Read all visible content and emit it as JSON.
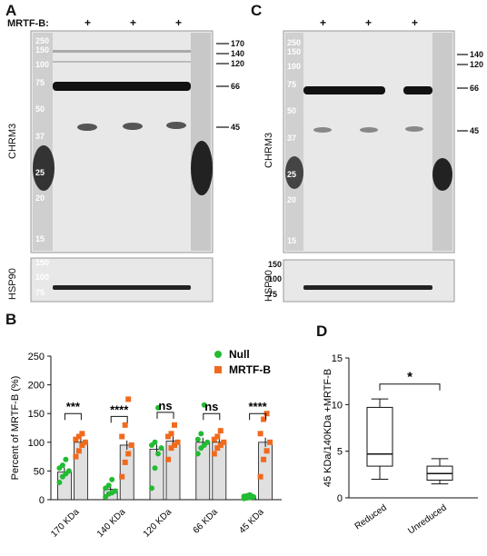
{
  "panels": {
    "a": "A",
    "b": "B",
    "c": "C",
    "d": "D"
  },
  "blot_a": {
    "mrtf_label": "MRTF-B:",
    "plus_marks": [
      "+",
      "+",
      "+"
    ],
    "mw_ladder": [
      "250",
      "150",
      "100",
      "75",
      "50",
      "37",
      "25",
      "20",
      "15"
    ],
    "right_markers": [
      "170",
      "140",
      "120",
      "66",
      "45"
    ],
    "antibody": "CHRM3",
    "loading_control": "HSP90",
    "hsp_ladder": [
      "150",
      "100",
      "75"
    ]
  },
  "blot_c": {
    "plus_marks": [
      "+",
      "+",
      "+"
    ],
    "mw_ladder": [
      "250",
      "150",
      "100",
      "75",
      "50",
      "37",
      "25",
      "20",
      "15"
    ],
    "right_markers": [
      "140",
      "120",
      "66",
      "45"
    ],
    "antibody": "CHRM3",
    "loading_control": "HSP90",
    "hsp_ladder": [
      "150",
      "100",
      "75"
    ]
  },
  "chart_data": [
    {
      "type": "bar",
      "ylabel": "Percent of MRTF-B (%)",
      "ylim": [
        0,
        250
      ],
      "yticks": [
        "0",
        "50",
        "100",
        "150",
        "200",
        "250"
      ],
      "categories": [
        "170 KDa",
        "140 KDa",
        "120 KDa",
        "66 KDa",
        "45 KDa"
      ],
      "series": [
        {
          "name": "Null",
          "color": "#22bb33",
          "values": [
            48,
            18,
            88,
            100,
            5
          ],
          "points": [
            [
              30,
              40,
              45,
              50,
              55,
              60,
              70
            ],
            [
              5,
              10,
              12,
              15,
              20,
              25,
              35
            ],
            [
              20,
              55,
              80,
              90,
              95,
              100,
              160
            ],
            [
              80,
              90,
              95,
              100,
              105,
              115,
              165
            ],
            [
              2,
              3,
              4,
              5,
              6,
              7,
              8
            ]
          ]
        },
        {
          "name": "MRTF-B",
          "color": "#f06a1e",
          "values": [
            100,
            95,
            102,
            100,
            100
          ],
          "points": [
            [
              75,
              85,
              95,
              100,
              105,
              110,
              115
            ],
            [
              40,
              65,
              80,
              95,
              110,
              130,
              175
            ],
            [
              70,
              90,
              95,
              100,
              110,
              115,
              130
            ],
            [
              80,
              90,
              95,
              100,
              105,
              110,
              120
            ],
            [
              40,
              70,
              85,
              100,
              115,
              140,
              150
            ]
          ]
        }
      ],
      "significance": [
        "***",
        "****",
        "ns",
        "ns",
        "****"
      ],
      "legend": "top-right"
    },
    {
      "type": "box",
      "ylabel": "45 KDa/140KDa +MRTF-B",
      "ylim": [
        0,
        15
      ],
      "yticks": [
        "0",
        "5",
        "10",
        "15"
      ],
      "categories": [
        "Reduced",
        "Unreduced"
      ],
      "boxes": [
        {
          "min": 2.0,
          "q1": 3.4,
          "median": 4.7,
          "q3": 9.7,
          "max": 10.6
        },
        {
          "min": 1.5,
          "q1": 1.9,
          "median": 2.6,
          "q3": 3.4,
          "max": 4.2
        }
      ],
      "significance": [
        "*"
      ]
    }
  ]
}
